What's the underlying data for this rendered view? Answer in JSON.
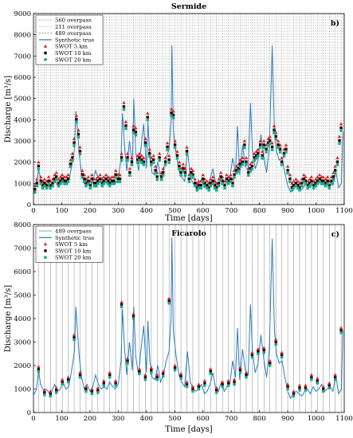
{
  "chart_data": [
    {
      "type": "line",
      "title": "Sermide",
      "panel_label": "b)",
      "xlabel": "Time [days]",
      "ylabel": "Discharge [m³/s]",
      "xlim": [
        0,
        1100
      ],
      "ylim": [
        0,
        9000
      ],
      "xticks": [
        "0",
        "100",
        "200",
        "300",
        "400",
        "500",
        "600",
        "700",
        "800",
        "900",
        "1000",
        "1100"
      ],
      "yticks": [
        "0",
        "1000",
        "2000",
        "3000",
        "4000",
        "5000",
        "6000",
        "7000",
        "8000",
        "9000"
      ],
      "grid": false,
      "legend_position": "top-left",
      "legend": [
        "560 overpass",
        "211 overpass",
        "489 overpass",
        "Synthetic true",
        "SWOT 5 km",
        "SWOT 10 km",
        "SWOT 20 km"
      ],
      "overpass_lines": {
        "560 overpass": {
          "start": 5,
          "step": 21,
          "color": "#999999"
        },
        "211 overpass": {
          "start": 12,
          "step": 21,
          "color": "#bbbbbb"
        },
        "489 overpass": {
          "start": 18,
          "step": 21,
          "color": "#777777"
        }
      },
      "series": [
        {
          "name": "Synthetic true",
          "kind": "line",
          "color": "#2b7bbf",
          "x": [
            0,
            10,
            18,
            25,
            35,
            45,
            55,
            65,
            75,
            85,
            95,
            105,
            115,
            125,
            135,
            145,
            150,
            156,
            162,
            170,
            180,
            190,
            200,
            210,
            220,
            230,
            240,
            250,
            260,
            270,
            280,
            290,
            300,
            310,
            315,
            322,
            330,
            340,
            350,
            355,
            362,
            372,
            380,
            390,
            400,
            405,
            412,
            420,
            430,
            440,
            450,
            460,
            470,
            480,
            487,
            490,
            495,
            505,
            515,
            525,
            535,
            545,
            555,
            565,
            575,
            585,
            595,
            605,
            615,
            625,
            635,
            645,
            655,
            665,
            675,
            685,
            695,
            705,
            715,
            722,
            730,
            740,
            750,
            760,
            768,
            775,
            785,
            795,
            805,
            815,
            825,
            835,
            845,
            853,
            860,
            870,
            880,
            890,
            900,
            910,
            920,
            930,
            940,
            950,
            960,
            970,
            980,
            990,
            1000,
            1010,
            1020,
            1030,
            1040,
            1050,
            1060,
            1070,
            1080,
            1090,
            1095
          ],
          "y": [
            700,
            900,
            1700,
            1200,
            900,
            1000,
            850,
            900,
            1200,
            900,
            1000,
            1300,
            1000,
            1100,
            1800,
            2600,
            4400,
            3500,
            2400,
            1500,
            1000,
            1200,
            900,
            1100,
            1600,
            1200,
            1000,
            1100,
            1000,
            1300,
            1100,
            1000,
            1200,
            2200,
            4300,
            2800,
            1600,
            3000,
            1800,
            5000,
            2500,
            1600,
            2600,
            3800,
            1700,
            3900,
            2200,
            1500,
            1400,
            2000,
            1300,
            1600,
            2200,
            2600,
            4000,
            7500,
            3500,
            2400,
            1600,
            1300,
            1100,
            2600,
            1300,
            1000,
            900,
            1000,
            1200,
            800,
            900,
            1200,
            1700,
            1000,
            900,
            1300,
            900,
            1100,
            1200,
            2200,
            1500,
            3700,
            1400,
            2800,
            1800,
            1600,
            4800,
            2600,
            1700,
            2100,
            3300,
            2300,
            1500,
            2700,
            7500,
            3500,
            2500,
            2100,
            2200,
            1500,
            900,
            600,
            800,
            900,
            800,
            700,
            900,
            1000,
            800,
            1100,
            900,
            1000,
            1200,
            900,
            1000,
            1100,
            900,
            1600,
            800,
            1000,
            3400
          ]
        },
        {
          "name": "SWOT 5 km",
          "kind": "markers",
          "marker": "triangle",
          "color": "#e8201d",
          "x": [
            5,
            12,
            18,
            26,
            33,
            39,
            47,
            54,
            60,
            68,
            75,
            81,
            89,
            96,
            102,
            110,
            117,
            123,
            131,
            138,
            144,
            152,
            159,
            165,
            173,
            180,
            186,
            194,
            201,
            207,
            215,
            222,
            228,
            236,
            243,
            249,
            257,
            264,
            270,
            278,
            285,
            291,
            299,
            306,
            312,
            320,
            327,
            333,
            341,
            348,
            354,
            362,
            369,
            375,
            383,
            390,
            396,
            404,
            411,
            417,
            425,
            432,
            438,
            446,
            453,
            459,
            467,
            474,
            480,
            488,
            495,
            501,
            509,
            516,
            522,
            530,
            537,
            543,
            551,
            558,
            564,
            572,
            579,
            585,
            593,
            600,
            606,
            614,
            621,
            627,
            635,
            642,
            648,
            656,
            663,
            669,
            677,
            684,
            690,
            698,
            705,
            711,
            719,
            726,
            732,
            740,
            747,
            753,
            761,
            768,
            774,
            782,
            789,
            795,
            803,
            810,
            816,
            824,
            831,
            837,
            845,
            852,
            858,
            866,
            873,
            879,
            887,
            894,
            900,
            908,
            915,
            921,
            929,
            936,
            942,
            950,
            957,
            963,
            971,
            978,
            984,
            992,
            999,
            1005,
            1013,
            1020,
            1026,
            1034,
            1041,
            1047,
            1055,
            1062,
            1068,
            1076,
            1083,
            1089
          ],
          "y": [
            900,
            1200,
            2000,
            1300,
            1100,
            1200,
            1100,
            1300,
            1100,
            1200,
            1400,
            1500,
            1200,
            1300,
            1400,
            1300,
            1300,
            1400,
            2100,
            2400,
            3100,
            4200,
            3500,
            2700,
            1600,
            1400,
            1200,
            1300,
            1100,
            1400,
            1200,
            1200,
            1300,
            1400,
            1200,
            1300,
            1400,
            1300,
            1200,
            1300,
            1300,
            1600,
            1400,
            1400,
            2400,
            4800,
            3900,
            2400,
            1700,
            2200,
            3700,
            3600,
            2300,
            2400,
            2300,
            2200,
            3100,
            4300,
            2600,
            2200,
            2300,
            1800,
            1500,
            2400,
            1500,
            1700,
            2200,
            2900,
            2300,
            4500,
            4400,
            3000,
            2500,
            2000,
            1700,
            1900,
            1700,
            2700,
            1400,
            1700,
            1600,
            1200,
            1000,
            1100,
            1100,
            1400,
            1200,
            1100,
            1000,
            1200,
            1300,
            1100,
            1000,
            1200,
            1500,
            1300,
            1100,
            1400,
            1300,
            1400,
            1200,
            1600,
            1800,
            1900,
            2100,
            2200,
            3000,
            2200,
            1700,
            1900,
            2000,
            2400,
            2500,
            2600,
            3000,
            2500,
            3000,
            2800,
            3100,
            3200,
            2900,
            3700,
            3400,
            3000,
            2800,
            2200,
            2600,
            2800,
            1800,
            1400,
            1000,
            1100,
            1200,
            1100,
            1000,
            1200,
            1400,
            1300,
            1100,
            1200,
            1300,
            1100,
            1200,
            1300,
            1400,
            1300,
            1300,
            1200,
            1300,
            1100,
            1300,
            1500,
            1800,
            2200,
            3200,
            3800
          ],
          "offset": 0
        },
        {
          "name": "SWOT 10 km",
          "kind": "markers",
          "marker": "square",
          "color": "#111111",
          "offset": -180
        },
        {
          "name": "SWOT 20 km",
          "kind": "markers",
          "marker": "square",
          "color": "#1aa883",
          "offset": -320
        }
      ]
    },
    {
      "type": "line",
      "title": "Ficarolo",
      "panel_label": "c)",
      "xlabel": "Time [days]",
      "ylabel": "Discharge [m³/s]",
      "xlim": [
        0,
        1100
      ],
      "ylim": [
        0,
        8000
      ],
      "xticks": [
        "0",
        "100",
        "200",
        "300",
        "400",
        "500",
        "600",
        "700",
        "800",
        "900",
        "1000",
        "1100"
      ],
      "yticks": [
        "0",
        "1000",
        "2000",
        "3000",
        "4000",
        "5000",
        "6000",
        "7000",
        "8000"
      ],
      "grid": false,
      "legend_position": "top-left",
      "legend": [
        "489 overpass",
        "Synthetic true",
        "SWOT 5 km",
        "SWOT 10 km",
        "SWOT 20 km"
      ],
      "overpass_lines": {
        "489 overpass": {
          "start": 18,
          "step": 21,
          "color": "#888888"
        }
      },
      "series": [
        {
          "name": "Synthetic true",
          "kind": "line",
          "color": "#2b7bbf",
          "x": [
            0,
            10,
            18,
            25,
            35,
            45,
            55,
            65,
            75,
            85,
            95,
            105,
            115,
            125,
            135,
            145,
            150,
            156,
            162,
            170,
            180,
            190,
            200,
            210,
            220,
            230,
            240,
            250,
            260,
            270,
            280,
            290,
            300,
            310,
            315,
            322,
            330,
            340,
            350,
            355,
            362,
            372,
            380,
            390,
            400,
            405,
            412,
            420,
            430,
            440,
            450,
            460,
            470,
            480,
            487,
            490,
            495,
            505,
            515,
            525,
            535,
            545,
            555,
            565,
            575,
            585,
            595,
            605,
            615,
            625,
            635,
            645,
            655,
            665,
            675,
            685,
            695,
            705,
            715,
            722,
            730,
            740,
            750,
            760,
            768,
            775,
            785,
            795,
            805,
            815,
            825,
            835,
            845,
            853,
            860,
            870,
            880,
            890,
            900,
            910,
            920,
            930,
            940,
            950,
            960,
            970,
            980,
            990,
            1000,
            1010,
            1020,
            1030,
            1040,
            1050,
            1060,
            1070,
            1080,
            1090,
            1095
          ],
          "y": [
            750,
            950,
            1800,
            1200,
            950,
            1000,
            850,
            900,
            1200,
            900,
            1000,
            1300,
            1000,
            1100,
            1800,
            2600,
            4500,
            3400,
            2400,
            1500,
            1000,
            1200,
            900,
            1100,
            1600,
            1200,
            1000,
            1100,
            1000,
            1300,
            1100,
            1000,
            1200,
            2200,
            4400,
            2800,
            1600,
            3000,
            1800,
            4500,
            2400,
            1600,
            2600,
            3700,
            1700,
            3900,
            2200,
            1500,
            1400,
            2000,
            1300,
            1600,
            2200,
            2600,
            4000,
            7450,
            3500,
            2400,
            1600,
            1300,
            1100,
            2600,
            1300,
            1000,
            900,
            1000,
            1200,
            800,
            900,
            1200,
            1700,
            1000,
            900,
            1300,
            900,
            1100,
            1200,
            2200,
            1500,
            3600,
            1400,
            2700,
            1800,
            1600,
            4600,
            2600,
            1700,
            2100,
            3300,
            2300,
            1500,
            2700,
            7400,
            3500,
            2500,
            2100,
            2200,
            1500,
            900,
            600,
            800,
            900,
            800,
            700,
            900,
            1000,
            800,
            1100,
            900,
            1000,
            1200,
            900,
            1000,
            1100,
            900,
            1600,
            800,
            1000,
            3500
          ]
        },
        {
          "name": "SWOT 5 km",
          "kind": "markers",
          "marker": "triangle",
          "color": "#e8201d",
          "x": [
            18,
            39,
            60,
            81,
            102,
            123,
            144,
            165,
            186,
            207,
            228,
            249,
            270,
            291,
            312,
            333,
            354,
            375,
            396,
            417,
            438,
            459,
            480,
            501,
            522,
            543,
            564,
            585,
            606,
            627,
            648,
            669,
            690,
            711,
            732,
            753,
            774,
            795,
            816,
            837,
            858,
            879,
            900,
            921,
            942,
            963,
            984,
            1005,
            1026,
            1047,
            1068,
            1089
          ],
          "y": [
            1950,
            950,
            900,
            1050,
            1400,
            1500,
            3300,
            1700,
            1100,
            1000,
            1050,
            1350,
            1700,
            1350,
            4700,
            2300,
            4200,
            1850,
            1600,
            1900,
            1600,
            1750,
            4850,
            2000,
            1650,
            1300,
            1100,
            1200,
            1350,
            1850,
            1050,
            1300,
            1350,
            1400,
            1900,
            1700,
            2550,
            2700,
            2750,
            2200,
            3100,
            2550,
            1200,
            900,
            1150,
            1150,
            1600,
            1450,
            1100,
            1250,
            1600,
            3600
          ]
        },
        {
          "name": "SWOT 10 km",
          "kind": "markers",
          "marker": "square",
          "color": "#111111",
          "offset": -110
        },
        {
          "name": "SWOT 20 km",
          "kind": "markers",
          "marker": "square",
          "color": "#1aa883",
          "offset": -200
        }
      ]
    }
  ]
}
